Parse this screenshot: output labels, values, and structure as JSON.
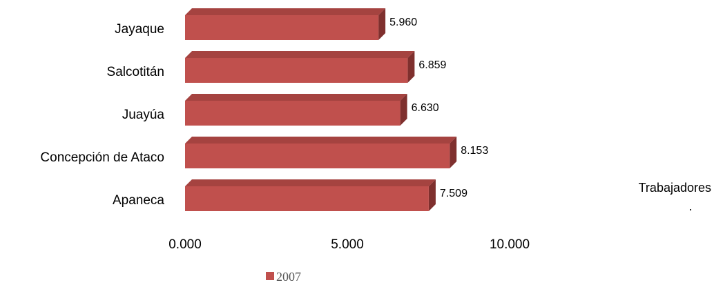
{
  "chart_data": {
    "type": "bar",
    "orientation": "horizontal",
    "style": "3d",
    "categories": [
      "Apaneca",
      "Concepción de Ataco",
      "Juayúa",
      "Salcotitán",
      "Jayaque"
    ],
    "series": [
      {
        "name": "2007",
        "values": [
          7509,
          8153,
          6630,
          6859,
          5960
        ],
        "labels": [
          "7.509",
          "8.153",
          "6.630",
          "6.859",
          "5.960"
        ]
      }
    ],
    "xlim": [
      0,
      10000
    ],
    "xticks": [
      0,
      5000,
      10000
    ],
    "xtick_labels": [
      "0.000",
      "5.000",
      "10.000"
    ],
    "xlabel": "Trabajadores",
    "xlabel_suffix": ".",
    "grid": false,
    "legend": "bottom",
    "colors": {
      "bar_front": "#c0504d",
      "bar_top": "#a54340",
      "bar_side": "#7f302e",
      "legend_marker": "#c0504d"
    }
  }
}
